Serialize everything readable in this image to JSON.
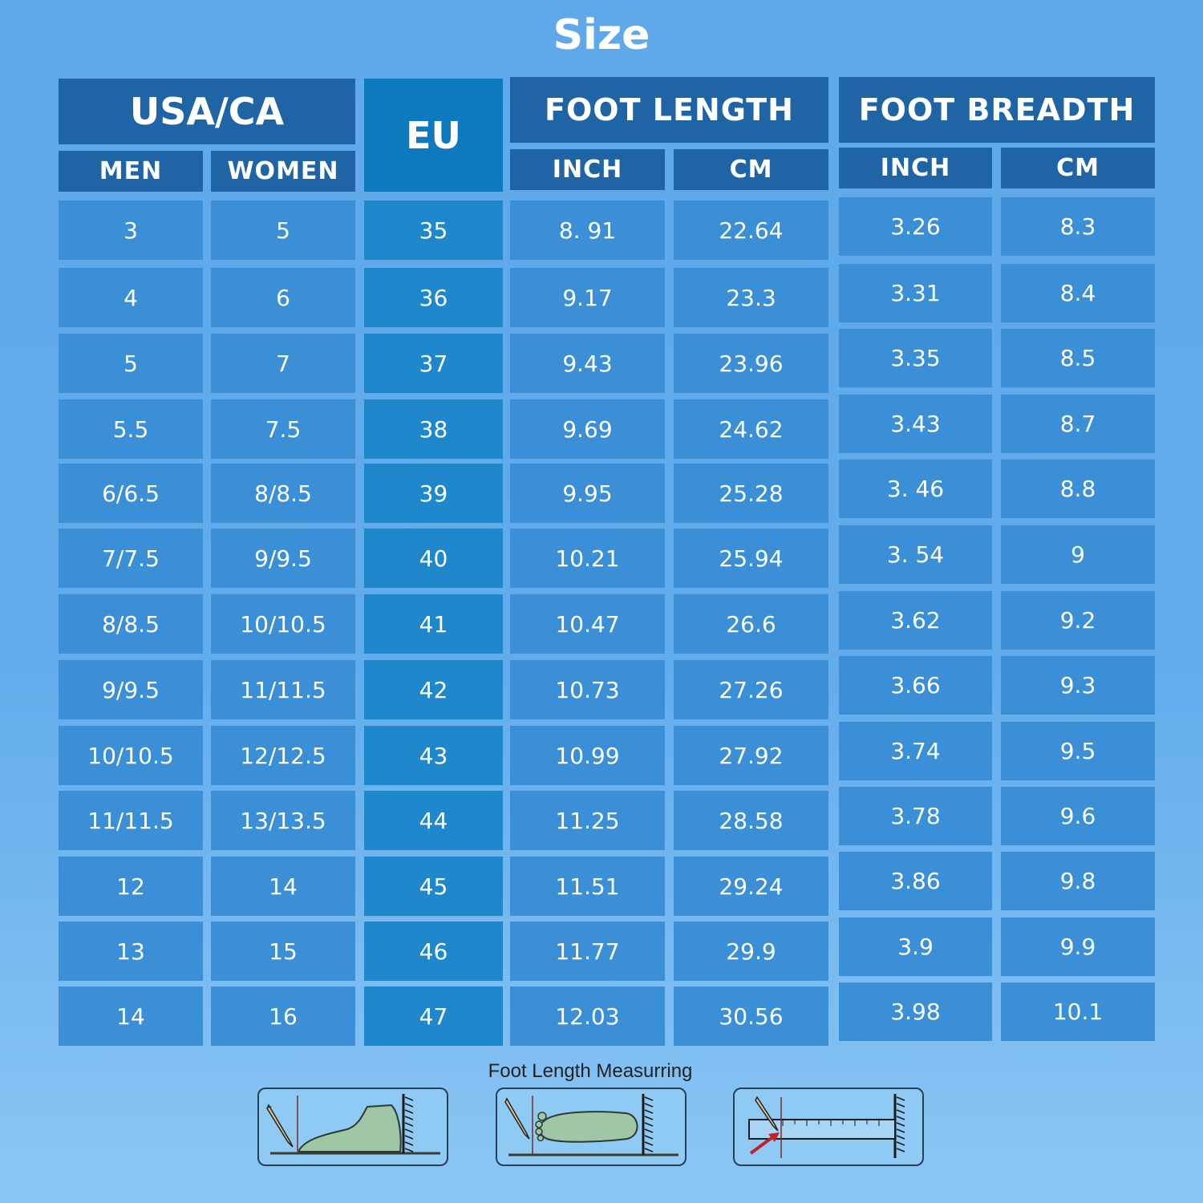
{
  "title": "Size",
  "headers": {
    "usa_ca": "USA/CA",
    "men": "MEN",
    "women": "WOMEN",
    "eu": "EU",
    "foot_length": "FOOT LENGTH",
    "foot_breadth": "FOOT BREADTH",
    "inch": "INCH",
    "cm": "CM"
  },
  "rows": [
    {
      "men": "3",
      "women": "5",
      "eu": "35",
      "fl_inch": "8. 91",
      "fl_cm": "22.64",
      "fb_inch": "3.26",
      "fb_cm": "8.3"
    },
    {
      "men": "4",
      "women": "6",
      "eu": "36",
      "fl_inch": "9.17",
      "fl_cm": "23.3",
      "fb_inch": "3.31",
      "fb_cm": "8.4"
    },
    {
      "men": "5",
      "women": "7",
      "eu": "37",
      "fl_inch": "9.43",
      "fl_cm": "23.96",
      "fb_inch": "3.35",
      "fb_cm": "8.5"
    },
    {
      "men": "5.5",
      "women": "7.5",
      "eu": "38",
      "fl_inch": "9.69",
      "fl_cm": "24.62",
      "fb_inch": "3.43",
      "fb_cm": "8.7"
    },
    {
      "men": "6/6.5",
      "women": "8/8.5",
      "eu": "39",
      "fl_inch": "9.95",
      "fl_cm": "25.28",
      "fb_inch": "3. 46",
      "fb_cm": "8.8"
    },
    {
      "men": "7/7.5",
      "women": "9/9.5",
      "eu": "40",
      "fl_inch": "10.21",
      "fl_cm": "25.94",
      "fb_inch": "3. 54",
      "fb_cm": "9"
    },
    {
      "men": "8/8.5",
      "women": "10/10.5",
      "eu": "41",
      "fl_inch": "10.47",
      "fl_cm": "26.6",
      "fb_inch": "3.62",
      "fb_cm": "9.2"
    },
    {
      "men": "9/9.5",
      "women": "11/11.5",
      "eu": "42",
      "fl_inch": "10.73",
      "fl_cm": "27.26",
      "fb_inch": "3.66",
      "fb_cm": "9.3"
    },
    {
      "men": "10/10.5",
      "women": "12/12.5",
      "eu": "43",
      "fl_inch": "10.99",
      "fl_cm": "27.92",
      "fb_inch": "3.74",
      "fb_cm": "9.5"
    },
    {
      "men": "11/11.5",
      "women": "13/13.5",
      "eu": "44",
      "fl_inch": "11.25",
      "fl_cm": "28.58",
      "fb_inch": "3.78",
      "fb_cm": "9.6"
    },
    {
      "men": "12",
      "women": "14",
      "eu": "45",
      "fl_inch": "11.51",
      "fl_cm": "29.24",
      "fb_inch": "3.86",
      "fb_cm": "9.8"
    },
    {
      "men": "13",
      "women": "15",
      "eu": "46",
      "fl_inch": "11.77",
      "fl_cm": "29.9",
      "fb_inch": "3.9",
      "fb_cm": "9.9"
    },
    {
      "men": "14",
      "women": "16",
      "eu": "47",
      "fl_inch": "12.03",
      "fl_cm": "30.56",
      "fb_inch": "3.98",
      "fb_cm": "10.1"
    }
  ],
  "caption": "Foot Length Measurring",
  "icons": [
    "foot-side-measure-icon",
    "foot-top-measure-icon",
    "ruler-measure-icon"
  ]
}
